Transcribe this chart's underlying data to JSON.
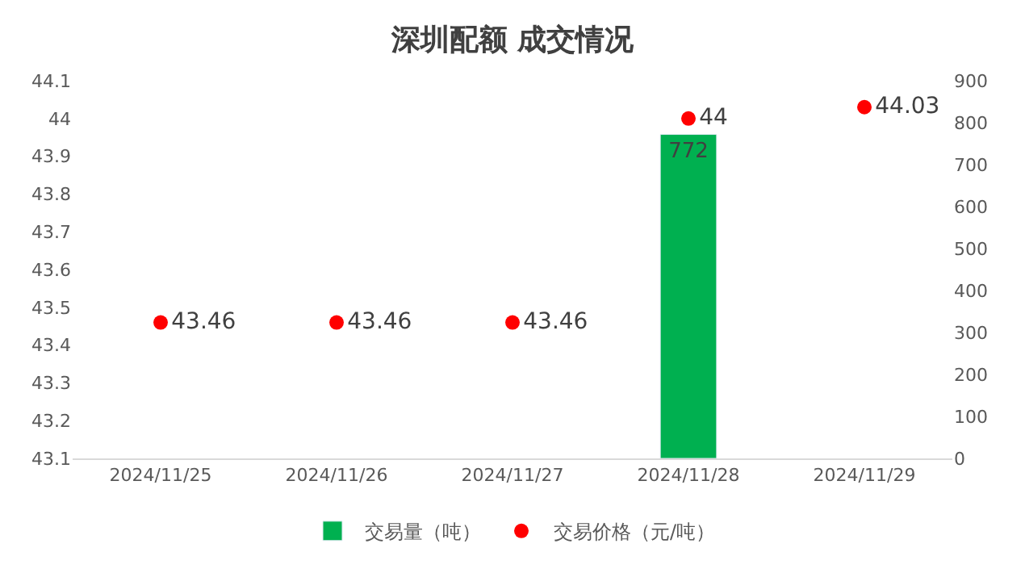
{
  "chart_data": {
    "type": "bar",
    "title": "深圳配额 成交情况",
    "categories": [
      "2024/11/25",
      "2024/11/26",
      "2024/11/27",
      "2024/11/28",
      "2024/11/29"
    ],
    "series": [
      {
        "name": "交易量（吨）",
        "axis": "y2",
        "color": "#00b050",
        "values": [
          null,
          null,
          null,
          772,
          null
        ]
      },
      {
        "name": "交易价格（元/吨）",
        "type": "scatter",
        "axis": "y",
        "color": "#ff0000",
        "values": [
          43.46,
          43.46,
          43.46,
          44,
          44.03
        ]
      }
    ],
    "ylim": [
      43.1,
      44.1
    ],
    "yticks": [
      43.1,
      43.2,
      43.3,
      43.4,
      43.5,
      43.6,
      43.7,
      43.8,
      43.9,
      44,
      44.1
    ],
    "y2lim": [
      0,
      900
    ],
    "y2ticks": [
      0,
      100,
      200,
      300,
      400,
      500,
      600,
      700,
      800,
      900
    ],
    "data_labels": true,
    "legend": "bottom",
    "marker": "circle"
  }
}
